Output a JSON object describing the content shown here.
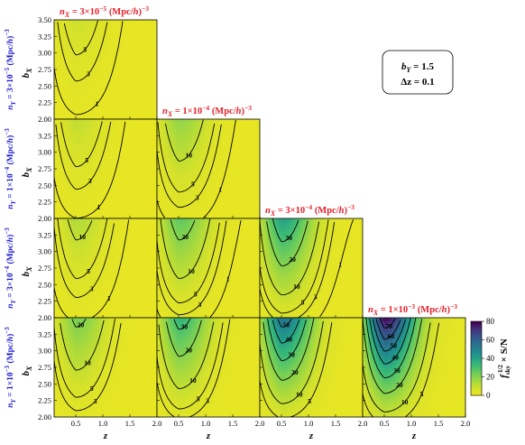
{
  "chart_data": {
    "type": "heatmap",
    "panel_titles": [
      "n_X = 3×10^-5 (Mpc/h)^-3",
      "n_X = 1×10^-4 (Mpc/h)^-3",
      "n_X = 3×10^-4 (Mpc/h)^-3",
      "n_X = 1×10^-3 (Mpc/h)^-3"
    ],
    "row_labels": [
      "n_Y = 3×10^-5 (Mpc/h)^-3",
      "n_Y = 1×10^-4 (Mpc/h)^-3",
      "n_Y = 3×10^-4 (Mpc/h)^-3",
      "n_Y = 1×10^-3 (Mpc/h)^-3"
    ],
    "xlabel": "z",
    "ylabel": "b_X",
    "xlim": [
      0.1,
      2.0
    ],
    "ylim": [
      2.0,
      3.5
    ],
    "xticks": [
      "0.5",
      "1.0",
      "1.5",
      "2.0"
    ],
    "yticks": [
      "2.00",
      "2.25",
      "2.50",
      "2.75",
      "3.00",
      "3.25",
      "3.50"
    ],
    "yticks_lower": [
      "2.00",
      "2.25",
      "2.50",
      "2.75",
      "3.00",
      "3.25"
    ],
    "legend_box": {
      "line1": "b_Y = 1.5",
      "line2": "Δz = 0.1"
    },
    "colorbar": {
      "label": "f_sky^(-1/2) × S/N",
      "range": [
        0,
        80
      ],
      "ticks": [
        "0",
        "20",
        "40",
        "60",
        "80"
      ]
    },
    "panels": [
      {
        "row": 0,
        "col": 0,
        "max_value": 8,
        "contour_levels": [
          1,
          3,
          5
        ]
      },
      {
        "row": 1,
        "col": 0,
        "max_value": 10,
        "contour_levels": [
          1,
          3,
          5
        ]
      },
      {
        "row": 1,
        "col": 1,
        "max_value": 18,
        "contour_levels": [
          1,
          3,
          5,
          10
        ]
      },
      {
        "row": 2,
        "col": 0,
        "max_value": 13,
        "contour_levels": [
          1,
          3,
          5,
          10
        ]
      },
      {
        "row": 2,
        "col": 1,
        "max_value": 26,
        "contour_levels": [
          1,
          3,
          5,
          10,
          20
        ]
      },
      {
        "row": 2,
        "col": 2,
        "max_value": 40,
        "contour_levels": [
          1,
          3,
          5,
          10,
          20,
          30
        ]
      },
      {
        "row": 3,
        "col": 0,
        "max_value": 22,
        "contour_levels": [
          3,
          5,
          10,
          20
        ]
      },
      {
        "row": 3,
        "col": 1,
        "max_value": 34,
        "contour_levels": [
          3,
          5,
          10,
          20,
          30
        ]
      },
      {
        "row": 3,
        "col": 2,
        "max_value": 55,
        "contour_levels": [
          5,
          10,
          20,
          30,
          40,
          50
        ]
      },
      {
        "row": 3,
        "col": 3,
        "max_value": 78,
        "contour_levels": [
          5,
          10,
          20,
          30,
          40,
          50,
          60,
          70
        ]
      }
    ]
  },
  "colors": {
    "title": "#e8202a",
    "row_label": "#1a1ad0"
  }
}
